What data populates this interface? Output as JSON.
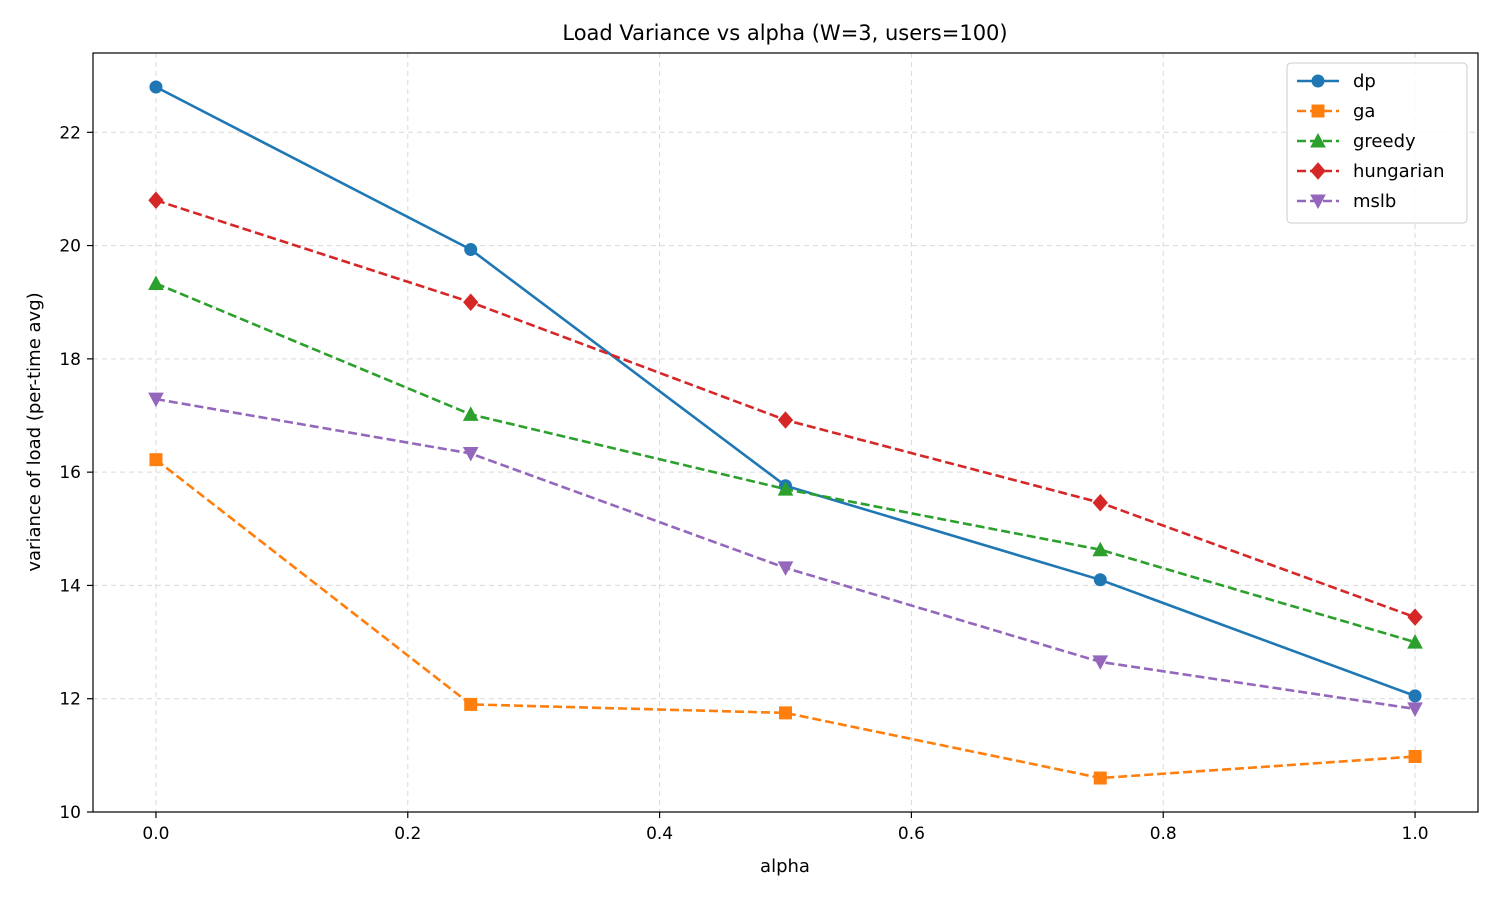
{
  "chart_data": {
    "type": "line",
    "title": "Load Variance vs alpha (W=3, users=100)",
    "xlabel": "alpha",
    "ylabel": "variance of load (per-time avg)",
    "xlim": [
      -0.05,
      1.05
    ],
    "ylim": [
      10,
      23.4
    ],
    "xticks": [
      0.0,
      0.2,
      0.4,
      0.6,
      0.8,
      1.0
    ],
    "xtick_labels": [
      "0.0",
      "0.2",
      "0.4",
      "0.6",
      "0.8",
      "1.0"
    ],
    "yticks": [
      10,
      12,
      14,
      16,
      18,
      20,
      22
    ],
    "ytick_labels": [
      "10",
      "12",
      "14",
      "16",
      "18",
      "20",
      "22"
    ],
    "grid": true,
    "legend_position": "top-right",
    "x": [
      0.0,
      0.25,
      0.5,
      0.75,
      1.0
    ],
    "series": [
      {
        "name": "dp",
        "values": [
          22.8,
          19.93,
          15.76,
          14.1,
          12.05
        ],
        "color": "#1f77b4",
        "linestyle": "solid",
        "marker": "circle"
      },
      {
        "name": "ga",
        "values": [
          16.22,
          11.9,
          11.75,
          10.6,
          10.98
        ],
        "color": "#ff7f0e",
        "linestyle": "dashed",
        "marker": "square"
      },
      {
        "name": "greedy",
        "values": [
          19.33,
          17.02,
          15.7,
          14.63,
          13.0
        ],
        "color": "#2ca02c",
        "linestyle": "dashed",
        "marker": "triangle-up"
      },
      {
        "name": "hungarian",
        "values": [
          20.8,
          19.0,
          16.92,
          15.46,
          13.44
        ],
        "color": "#d62728",
        "linestyle": "dashed",
        "marker": "diamond"
      },
      {
        "name": "mslb",
        "values": [
          17.29,
          16.33,
          14.31,
          12.65,
          11.82
        ],
        "color": "#9467bd",
        "linestyle": "dashed",
        "marker": "triangle-down"
      }
    ]
  }
}
